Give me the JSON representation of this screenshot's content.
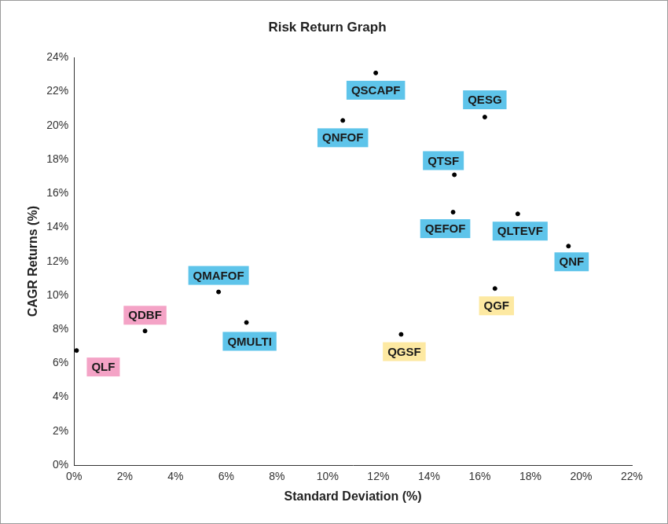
{
  "chart_data": {
    "type": "scatter",
    "title": "Risk Return Graph",
    "x_label": "Standard Deviation (%)",
    "y_label": "CAGR Returns (%)",
    "labels": [
      "QLF",
      "QDBF",
      "QMAFOF",
      "QMULTI",
      "QNFOF",
      "QSCAPF",
      "QESG",
      "QTSF",
      "QEFOF",
      "QLTEVF",
      "QNF",
      "QGF",
      "QGSF"
    ],
    "x": [
      0.1,
      2.8,
      5.7,
      6.8,
      10.6,
      11.9,
      16.2,
      15.0,
      14.95,
      17.5,
      19.5,
      16.6,
      12.9
    ],
    "values": [
      6.75,
      7.9,
      10.2,
      8.4,
      20.3,
      23.1,
      20.5,
      17.1,
      14.9,
      14.8,
      12.9,
      10.4,
      7.7
    ],
    "color": "#000000",
    "colors": [
      "#f4a3c6",
      "#f4a3c6",
      "#5ec4ea",
      "#5ec4ea",
      "#5ec4ea",
      "#5ec4ea",
      "#5ec4ea",
      "#5ec4ea",
      "#5ec4ea",
      "#5ec4ea",
      "#5ec4ea",
      "#fde9a2",
      "#fde9a2"
    ],
    "marker": "circle",
    "xlim": [
      0,
      22
    ],
    "xticks": [
      {
        "value": 0,
        "label": "0%"
      },
      {
        "value": 2,
        "label": "2%"
      },
      {
        "value": 4,
        "label": "4%"
      },
      {
        "value": 6,
        "label": "6%"
      },
      {
        "value": 8,
        "label": "8%"
      },
      {
        "value": 10,
        "label": "10%"
      },
      {
        "value": 12,
        "label": "12%"
      },
      {
        "value": 14,
        "label": "14%"
      },
      {
        "value": 16,
        "label": "16%"
      },
      {
        "value": 18,
        "label": "18%"
      },
      {
        "value": 20,
        "label": "20%"
      },
      {
        "value": 22,
        "label": "22%"
      }
    ],
    "ylim": [
      0,
      24
    ],
    "yticks": [
      {
        "value": 0,
        "label": "0%"
      },
      {
        "value": 2,
        "label": "2%"
      },
      {
        "value": 4,
        "label": "4%"
      },
      {
        "value": 6,
        "label": "6%"
      },
      {
        "value": 8,
        "label": "8%"
      },
      {
        "value": 10,
        "label": "10%"
      },
      {
        "value": 12,
        "label": "12%"
      },
      {
        "value": 14,
        "label": "14%"
      },
      {
        "value": 16,
        "label": "16%"
      },
      {
        "value": 18,
        "label": "18%"
      },
      {
        "value": 20,
        "label": "20%"
      },
      {
        "value": 22,
        "label": "22%"
      },
      {
        "value": 24,
        "label": "24%"
      }
    ],
    "grid": false
  }
}
